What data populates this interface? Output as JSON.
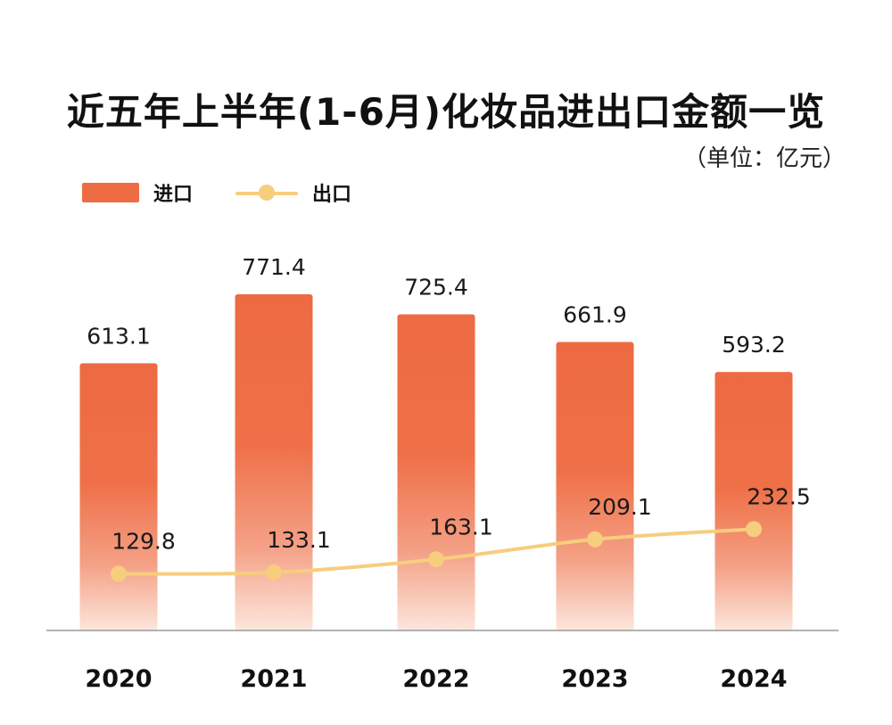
{
  "chart_data": {
    "type": "bar",
    "title": "近五年上半年(1-6月)化妆品进出口金额一览",
    "unit": "（单位：亿元）",
    "categories": [
      "2020",
      "2021",
      "2022",
      "2023",
      "2024"
    ],
    "series": [
      {
        "name": "进口",
        "type": "bar",
        "color": "#ee6c44",
        "values": [
          613.1,
          771.4,
          725.4,
          661.9,
          593.2
        ]
      },
      {
        "name": "出口",
        "type": "line",
        "color": "#f7cd7e",
        "values": [
          129.8,
          133.1,
          163.1,
          209.1,
          232.5
        ]
      }
    ],
    "ylim": [
      0,
      800
    ],
    "grid": false,
    "legend_position": "top-left"
  }
}
